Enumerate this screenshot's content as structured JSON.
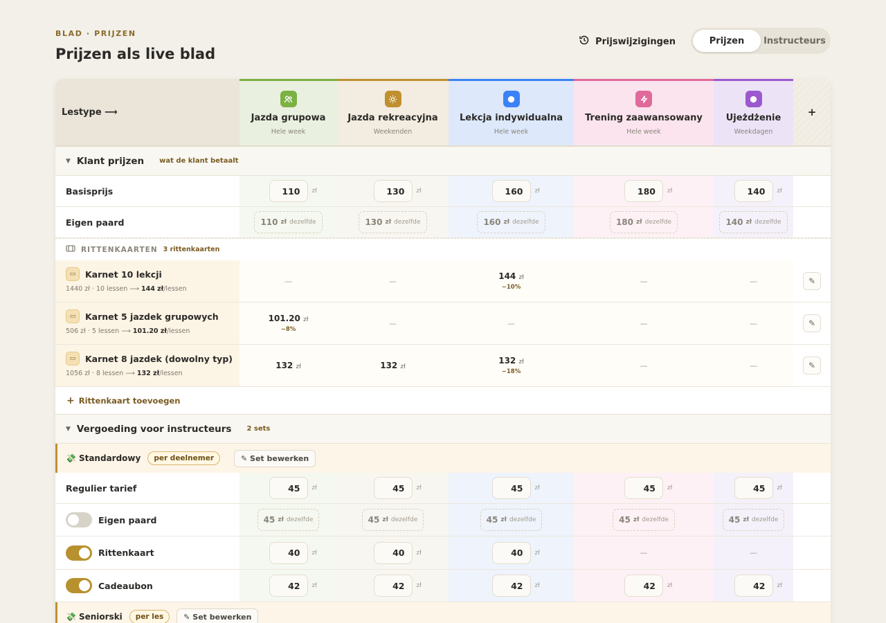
{
  "header": {
    "eyebrow": "BLAD · PRIJZEN",
    "title": "Prijzen als live blad",
    "history_label": "Prijswijzigingen",
    "segment": {
      "active": "Prijzen",
      "other": "Instructeurs"
    }
  },
  "columns_header": {
    "lestype": "Lestype ⟶",
    "add": "+"
  },
  "columns": [
    {
      "name": "Jazda grupowa",
      "sub": "Hele week",
      "icon": "people-icon",
      "color": "#7cb243"
    },
    {
      "name": "Jazda rekreacyjna",
      "sub": "Weekenden",
      "icon": "sun-icon",
      "color": "#c0902f"
    },
    {
      "name": "Lekcja indywidualna",
      "sub": "Hele week",
      "icon": "circle-icon",
      "color": "#3b82f6"
    },
    {
      "name": "Trening zaawansowany",
      "sub": "Hele week",
      "icon": "bolt-icon",
      "color": "#e0699b"
    },
    {
      "name": "Ujeżdżenie",
      "sub": "Weekdagen",
      "icon": "circle-icon",
      "color": "#9b59d0"
    }
  ],
  "klant": {
    "title": "Klant prijzen",
    "subtitle": "wat de klant betaalt",
    "base_label": "Basisprijs",
    "base": [
      "110",
      "130",
      "160",
      "180",
      "140"
    ],
    "own_label": "Eigen paard",
    "own": [
      "110",
      "130",
      "160",
      "180",
      "140"
    ],
    "unit": "zł",
    "same": "dezelfde"
  },
  "passes": {
    "heading": "RITTENKAARTEN",
    "count": "3 rittenkaarten",
    "items": [
      {
        "name": "Karnet 10 lekcji",
        "desc_pre": "1440 zł · 10 lessen ⟶ ",
        "desc_val": "144 zł",
        "desc_post": "/lessen",
        "cells": [
          {
            "v": "—"
          },
          {
            "v": "—"
          },
          {
            "v": "144",
            "d": "−10%"
          },
          {
            "v": "—"
          },
          {
            "v": "—"
          }
        ]
      },
      {
        "name": "Karnet 5 jazdek grupowych",
        "desc_pre": "506 zł · 5 lessen ⟶ ",
        "desc_val": "101.20 zł",
        "desc_post": "/lessen",
        "cells": [
          {
            "v": "101.20",
            "d": "−8%"
          },
          {
            "v": "—"
          },
          {
            "v": "—"
          },
          {
            "v": "—"
          },
          {
            "v": "—"
          }
        ]
      },
      {
        "name": "Karnet 8 jazdek (dowolny typ)",
        "desc_pre": "1056 zł · 8 lessen ⟶ ",
        "desc_val": "132 zł",
        "desc_post": "/lessen",
        "cells": [
          {
            "v": "132"
          },
          {
            "v": "132"
          },
          {
            "v": "132",
            "d": "−18%"
          },
          {
            "v": "—"
          },
          {
            "v": "—"
          }
        ]
      }
    ],
    "add_label": "Rittenkaart toevoegen"
  },
  "instr": {
    "title": "Vergoeding voor instructeurs",
    "subtitle": "2 sets",
    "set1": {
      "name": "Standardowy",
      "pill": "per deelnemer",
      "edit": "Set bewerken"
    },
    "regular_label": "Regulier tarief",
    "regular": [
      "45",
      "45",
      "45",
      "45",
      "45"
    ],
    "own_label": "Eigen paard",
    "own": [
      "45",
      "45",
      "45",
      "45",
      "45"
    ],
    "pass_label": "Rittenkaart",
    "pass": [
      "40",
      "40",
      "40",
      "—",
      "—"
    ],
    "gift_label": "Cadeaubon",
    "gift": [
      "42",
      "42",
      "42",
      "42",
      "42"
    ],
    "set2": {
      "name": "Seniorski",
      "pill": "per les",
      "edit": "Set bewerken"
    }
  }
}
